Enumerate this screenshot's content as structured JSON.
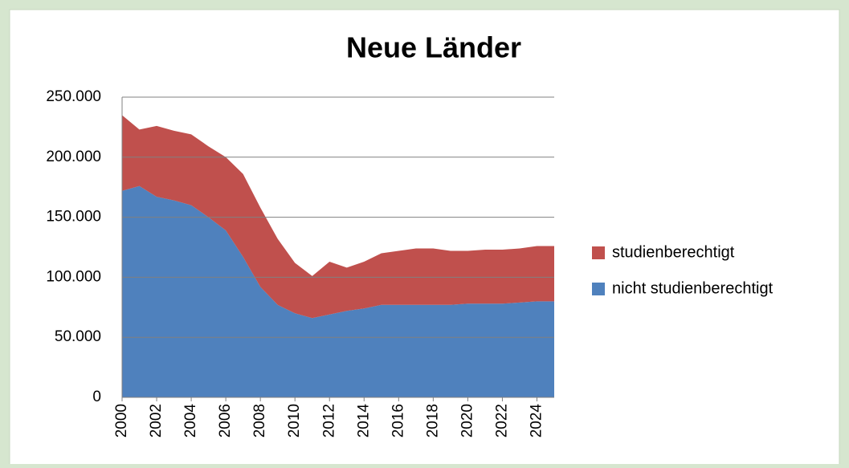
{
  "chart_data": {
    "type": "stacked-area",
    "title": "Neue Länder",
    "x": [
      2000,
      2001,
      2002,
      2003,
      2004,
      2005,
      2006,
      2007,
      2008,
      2009,
      2010,
      2011,
      2012,
      2013,
      2014,
      2015,
      2016,
      2017,
      2018,
      2019,
      2020,
      2021,
      2022,
      2023,
      2024,
      2025
    ],
    "xlim": [
      2000,
      2025
    ],
    "xticks": [
      2000,
      2002,
      2004,
      2006,
      2008,
      2010,
      2012,
      2014,
      2016,
      2018,
      2020,
      2022,
      2024
    ],
    "ylim": [
      0,
      250000
    ],
    "yticks": [
      0,
      {
        "value": 50000,
        "label": "50.000"
      },
      {
        "value": 100000,
        "label": "100.000"
      },
      {
        "value": 150000,
        "label": "150.000"
      },
      {
        "value": 200000,
        "label": "200.000"
      },
      {
        "value": 250000,
        "label": "250.000"
      }
    ],
    "grid": true,
    "series": [
      {
        "name": "nicht studienberechtigt",
        "color": "#4f81bd",
        "values": [
          172000,
          176000,
          167000,
          164000,
          160000,
          150000,
          139000,
          117000,
          92000,
          77000,
          70000,
          66000,
          69000,
          72000,
          74000,
          77000,
          77000,
          77000,
          77000,
          77000,
          78000,
          78000,
          78000,
          79000,
          80000,
          80000
        ]
      },
      {
        "name": "studienberechtigt",
        "color": "#c0504d",
        "values": [
          63000,
          47000,
          59000,
          58000,
          59000,
          59000,
          61000,
          69000,
          66000,
          55000,
          42000,
          35000,
          44000,
          36000,
          39000,
          43000,
          45000,
          47000,
          47000,
          45000,
          44000,
          45000,
          45000,
          45000,
          46000,
          46000
        ]
      }
    ]
  }
}
